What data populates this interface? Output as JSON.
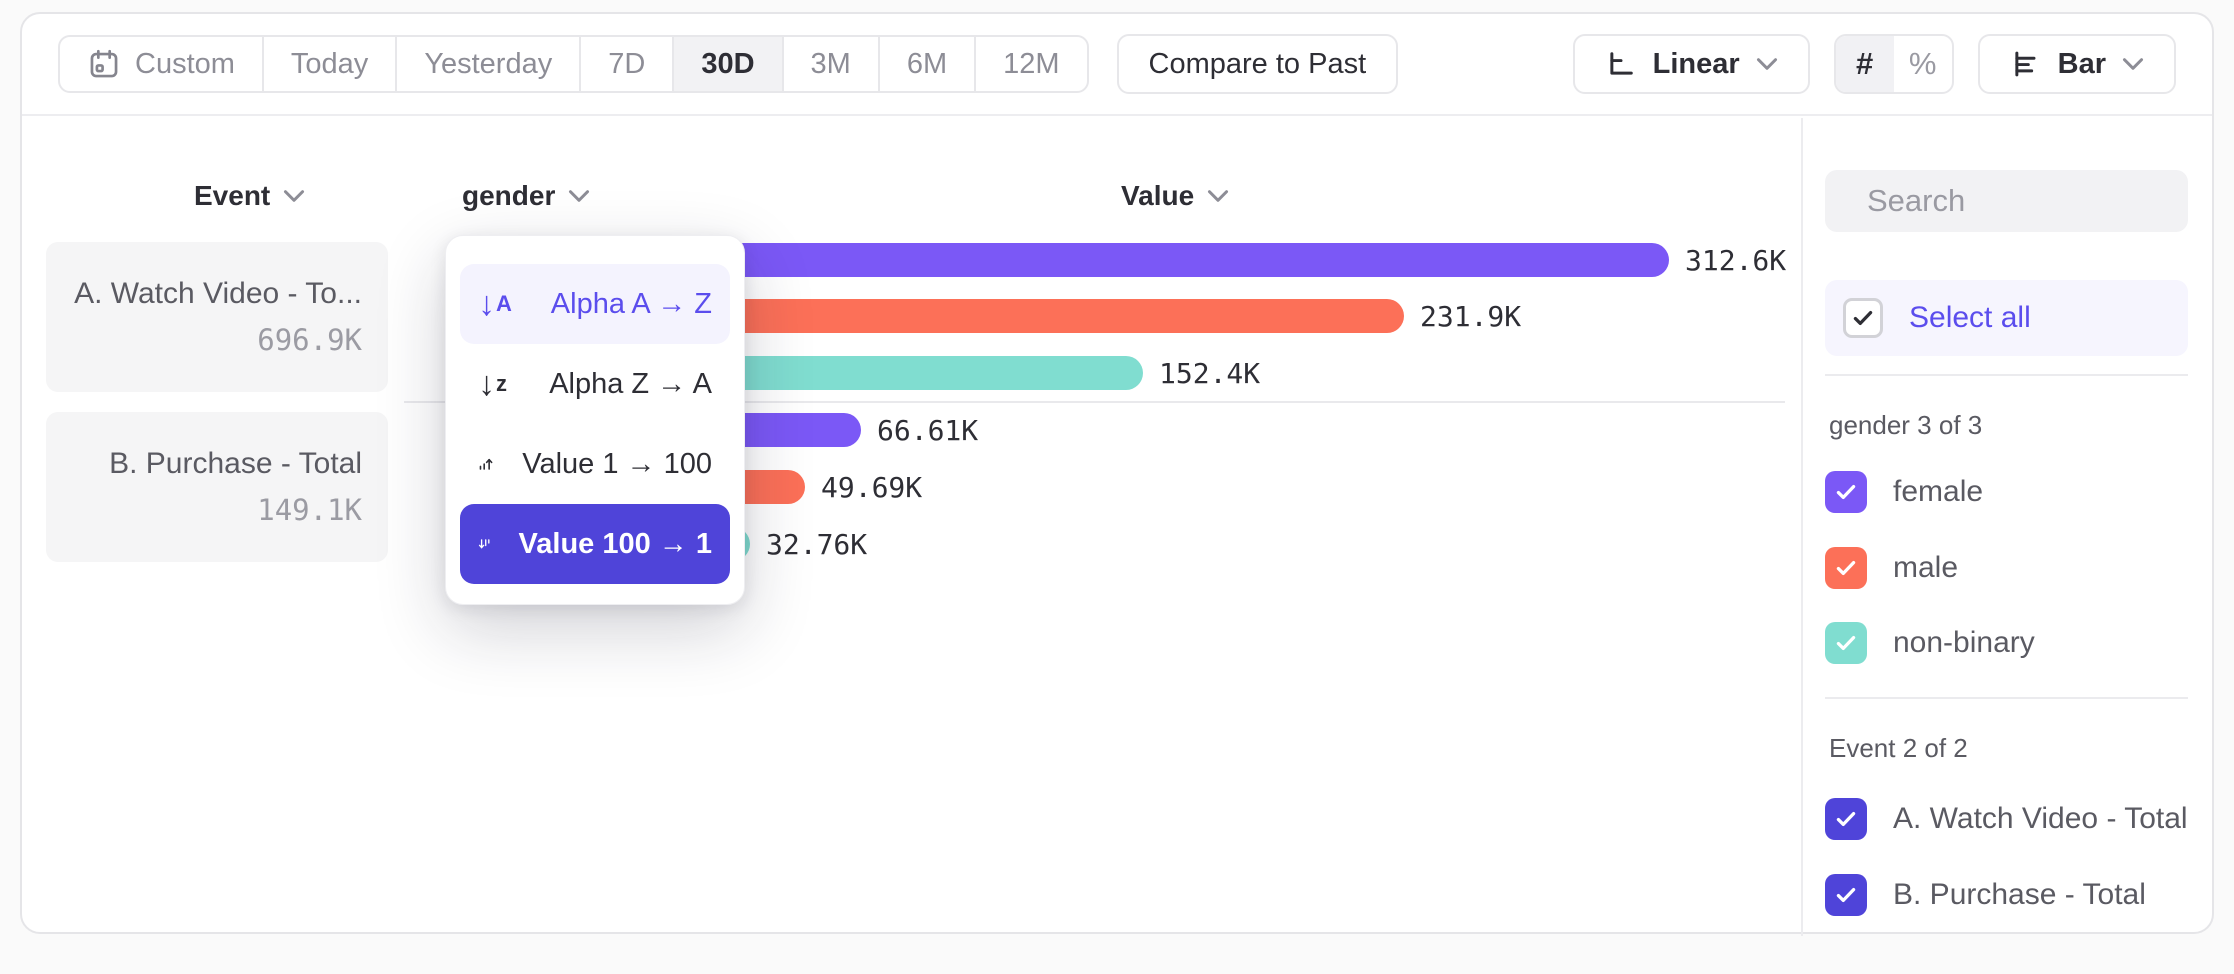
{
  "toolbar": {
    "date_ranges": [
      "Custom",
      "Today",
      "Yesterday",
      "7D",
      "30D",
      "3M",
      "6M",
      "12M"
    ],
    "selected_range": "30D",
    "compare_button": "Compare to Past",
    "scale_selector": "Linear",
    "value_format_options": [
      "#",
      "%"
    ],
    "selected_value_format": "#",
    "chart_type_selector": "Bar"
  },
  "chart_header": {
    "event": "Event",
    "breakdown": "gender",
    "value": "Value"
  },
  "event_cards": [
    {
      "label": "A. Watch Video - To...",
      "value": "696.9K"
    },
    {
      "label": "B. Purchase - Total",
      "value": "149.1K"
    }
  ],
  "sort_menu": {
    "items": [
      {
        "label": "Alpha A → Z"
      },
      {
        "label": "Alpha Z → A"
      },
      {
        "label": "Value 1 → 100"
      },
      {
        "label": "Value 100 → 1"
      }
    ],
    "highlighted": "Alpha A → Z",
    "selected": "Value 100 → 1"
  },
  "sidebar": {
    "search_placeholder": "Search",
    "select_all": "Select all",
    "sections": [
      {
        "title": "gender 3 of 3",
        "items": [
          {
            "label": "female",
            "checked": true,
            "color": "#7B58F6"
          },
          {
            "label": "male",
            "checked": true,
            "color": "#FC7058"
          },
          {
            "label": "non-binary",
            "checked": true,
            "color": "#80DDD0"
          }
        ]
      },
      {
        "title": "Event 2 of 2",
        "items": [
          {
            "label": "A. Watch Video - Total",
            "checked": true,
            "color": "#4F44D9"
          },
          {
            "label": "B. Purchase - Total",
            "checked": true,
            "color": "#4F44D9"
          }
        ]
      }
    ]
  },
  "chart_data": {
    "type": "bar",
    "orientation": "horizontal",
    "value_axis_label": "Value",
    "breakdown_property": "gender",
    "xmax": 312600,
    "groups": [
      {
        "event": "A. Watch Video - Total",
        "event_total": "696.9K",
        "categories": [
          "female",
          "male",
          "non-binary"
        ],
        "values": [
          312600,
          231900,
          152400
        ],
        "labels": [
          "312.6K",
          "231.9K",
          "152.4K"
        ]
      },
      {
        "event": "B. Purchase - Total",
        "event_total": "149.1K",
        "categories": [
          "female",
          "male",
          "non-binary"
        ],
        "values": [
          66610,
          49690,
          32760
        ],
        "labels": [
          "66.61K",
          "49.69K",
          "32.76K"
        ]
      }
    ],
    "series_colors": {
      "female": "#7B58F6",
      "male": "#FC7058",
      "non-binary": "#80DDD0"
    }
  },
  "colors": {
    "accent": "#4F44D9",
    "accent_text": "#5B4DED",
    "selected_segment_bg": "#F2F2F4",
    "selected_menu_bg": "#4F44D9"
  }
}
